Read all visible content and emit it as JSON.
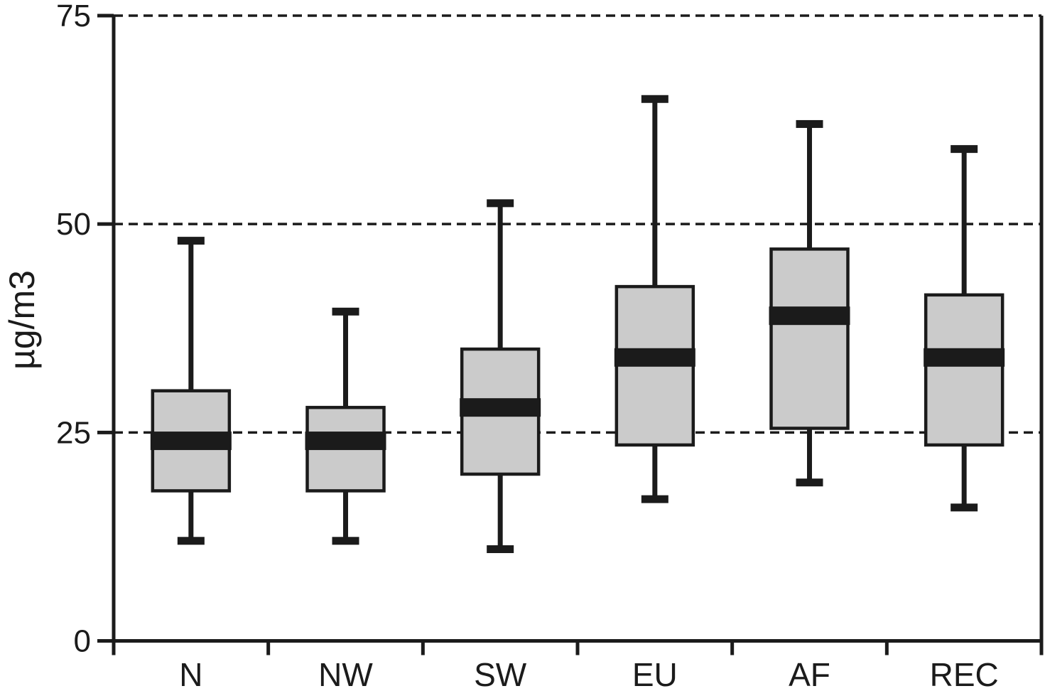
{
  "figure": {
    "background": "#ffffff"
  },
  "chart_data": {
    "type": "boxplot",
    "title": "",
    "xlabel": "",
    "ylabel": "µg/m3",
    "ylim": [
      0,
      75
    ],
    "yticks": [
      0,
      25,
      50,
      75
    ],
    "ytick_labels": [
      "0",
      "25",
      "50",
      "75"
    ],
    "gridlines": [
      25,
      50,
      75
    ],
    "grid_style": "dashed",
    "legend": "none",
    "categories": [
      "N",
      "NW",
      "SW",
      "EU",
      "AF",
      "REC"
    ],
    "series": [
      {
        "category": "N",
        "min": 12,
        "q1": 18,
        "median": 24,
        "q3": 30,
        "max": 48
      },
      {
        "category": "NW",
        "min": 12,
        "q1": 18,
        "median": 24,
        "q3": 28,
        "max": 39.5
      },
      {
        "category": "SW",
        "min": 11,
        "q1": 20,
        "median": 28,
        "q3": 35,
        "max": 52.5
      },
      {
        "category": "EU",
        "min": 17,
        "q1": 23.5,
        "median": 34,
        "q3": 42.5,
        "max": 65
      },
      {
        "category": "AF",
        "min": 19,
        "q1": 25.5,
        "median": 39,
        "q3": 47,
        "max": 62
      },
      {
        "category": "REC",
        "min": 16,
        "q1": 23.5,
        "median": 34,
        "q3": 41.5,
        "max": 59
      }
    ],
    "colors": {
      "box_fill": "#cbcbcb",
      "line": "#1b1b1b",
      "median": "#1b1b1b",
      "background": "#ffffff"
    }
  }
}
